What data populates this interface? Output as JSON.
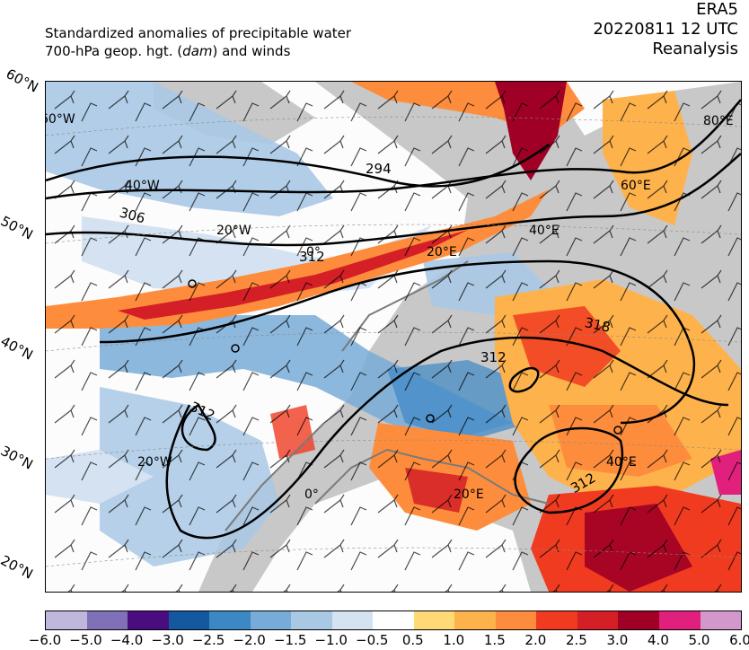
{
  "header": {
    "title_line1": "Standardized anomalies of precipitable water",
    "title_line2_pre": "700-hPa geop. hgt. (",
    "title_line2_unit": "dam",
    "title_line2_post": ") and winds",
    "model": "ERA5",
    "datetime": "20220811 12 UTC",
    "product": "Reanalysis"
  },
  "map": {
    "lat_labels": [
      "60°N",
      "50°N",
      "40°N",
      "30°N",
      "20°N"
    ],
    "lon_labels": [
      "60°W",
      "40°W",
      "20°W",
      "0°",
      "20°E",
      "40°E",
      "60°E",
      "80°E",
      "20°W",
      "0°",
      "20°E",
      "40°E"
    ],
    "contour_labels": [
      "294",
      "306",
      "312",
      "312",
      "312",
      "318",
      "312"
    ],
    "colors": {
      "land_gray": "#c8c8c8",
      "border_gray": "#7a7a7a",
      "contour": "#000000"
    }
  },
  "colorbar": {
    "ticks": [
      "−6.0",
      "−5.0",
      "−4.0",
      "−3.0",
      "−2.5",
      "−2.0",
      "−1.5",
      "−1.0",
      "−0.5",
      "0.5",
      "1.0",
      "1.5",
      "2.0",
      "2.5",
      "3.0",
      "4.0",
      "5.0",
      "6.0"
    ],
    "colors": [
      "#c0b8dc",
      "#8070b8",
      "#4a0d80",
      "#1458a0",
      "#3c88c4",
      "#78acd8",
      "#a8c8e4",
      "#d4e2f2",
      "#ffffff",
      "#fed976",
      "#feb24c",
      "#fd8d3c",
      "#f03b20",
      "#d41f26",
      "#a00026",
      "#e0207c",
      "#d298cc"
    ]
  }
}
